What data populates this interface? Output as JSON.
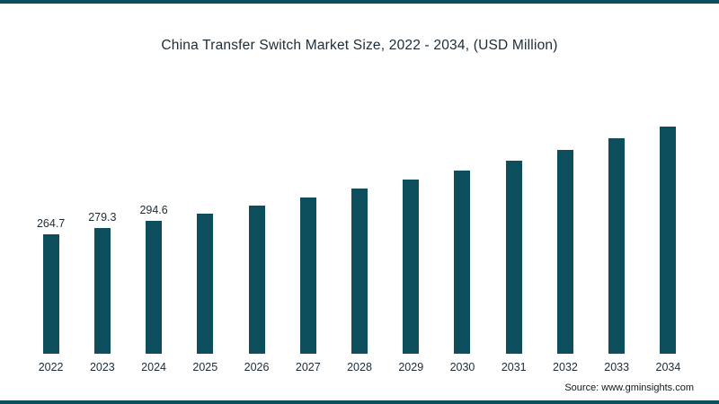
{
  "chart_data": {
    "type": "bar",
    "title": "China Transfer Switch Market Size, 2022 - 2034, (USD Million)",
    "categories": [
      "2022",
      "2023",
      "2024",
      "2025",
      "2026",
      "2027",
      "2028",
      "2029",
      "2030",
      "2031",
      "2032",
      "2033",
      "2034"
    ],
    "values": [
      264.7,
      279.3,
      294.6,
      311,
      328,
      346,
      365,
      385,
      406,
      428,
      452,
      477,
      503
    ],
    "value_labels": [
      "264.7",
      "279.3",
      "294.6",
      "",
      "",
      "",
      "",
      "",
      "",
      "",
      "",
      "",
      ""
    ],
    "xlabel": "",
    "ylabel": "",
    "ylim": [
      0,
      520
    ],
    "grid": false,
    "legend": false,
    "bar_color": "#0d4e5d"
  },
  "frame": {
    "accent_color": "#0d4e5d"
  },
  "source": {
    "label": "Source: www.gminsights.com"
  }
}
